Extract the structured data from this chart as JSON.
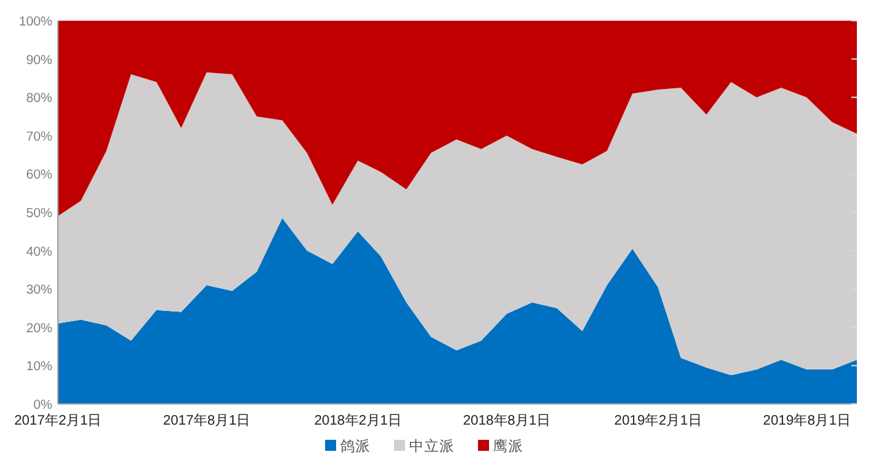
{
  "chart_data": {
    "type": "area",
    "stacked": true,
    "x": [
      "2017-02",
      "2017-03",
      "2017-04",
      "2017-05",
      "2017-06",
      "2017-07",
      "2017-08",
      "2017-09",
      "2017-10",
      "2017-11",
      "2017-12",
      "2018-01",
      "2018-02",
      "2018-03",
      "2018-04",
      "2018-05",
      "2018-06",
      "2018-07",
      "2018-08",
      "2018-09",
      "2018-10",
      "2018-11",
      "2018-12",
      "2019-01",
      "2019-02",
      "2019-03",
      "2019-04",
      "2019-05",
      "2019-06",
      "2019-07",
      "2019-08",
      "2019-09",
      "2019-10"
    ],
    "series": [
      {
        "name": "鸽派",
        "color": "#0070c0",
        "values": [
          21,
          22,
          20.5,
          16.5,
          24.5,
          24,
          31,
          29.5,
          34.5,
          48.5,
          40,
          36.5,
          45,
          38.5,
          26.5,
          17.5,
          14,
          16.5,
          23.5,
          26.5,
          25,
          19,
          31,
          40.5,
          30.5,
          12,
          9.5,
          7.5,
          9,
          11.5,
          9,
          9,
          11.5
        ]
      },
      {
        "name": "中立派",
        "color": "#d0cece",
        "values": [
          28,
          31,
          45.5,
          69.5,
          59.5,
          48,
          55.5,
          56.5,
          40.5,
          25.5,
          25.5,
          15.5,
          18.5,
          22,
          29.5,
          48,
          55,
          50,
          46.5,
          40,
          39.5,
          43.5,
          35,
          40.5,
          51.5,
          70.5,
          66,
          76.5,
          71,
          71,
          71,
          64.5,
          59
        ]
      },
      {
        "name": "鹰派",
        "color": "#c00000",
        "values": [
          51,
          47,
          34,
          14,
          16,
          28,
          13.5,
          14,
          25,
          26,
          34.5,
          48,
          36.5,
          39.5,
          44,
          34.5,
          31,
          33.5,
          30,
          33.5,
          35.5,
          37.5,
          34,
          19,
          18,
          17.5,
          24.5,
          16,
          20,
          17.5,
          20,
          26.5,
          29.5
        ]
      }
    ],
    "xlim": [
      "2017-02",
      "2019-10"
    ],
    "xticks": [
      {
        "value": "2017-02",
        "label": "2017年2月1日"
      },
      {
        "value": "2017-08",
        "label": "2017年8月1日"
      },
      {
        "value": "2018-02",
        "label": "2018年2月1日"
      },
      {
        "value": "2018-08",
        "label": "2018年8月1日"
      },
      {
        "value": "2019-02",
        "label": "2019年2月1日"
      },
      {
        "value": "2019-08",
        "label": "2019年8月1日"
      }
    ],
    "ylim": [
      0,
      100
    ],
    "yticks": [
      {
        "value": 0,
        "label": "0%"
      },
      {
        "value": 10,
        "label": "10%"
      },
      {
        "value": 20,
        "label": "20%"
      },
      {
        "value": 30,
        "label": "30%"
      },
      {
        "value": 40,
        "label": "40%"
      },
      {
        "value": 50,
        "label": "50%"
      },
      {
        "value": 60,
        "label": "60%"
      },
      {
        "value": 70,
        "label": "70%"
      },
      {
        "value": 80,
        "label": "80%"
      },
      {
        "value": 90,
        "label": "90%"
      },
      {
        "value": 100,
        "label": "100%"
      }
    ],
    "legend": "bottom"
  }
}
